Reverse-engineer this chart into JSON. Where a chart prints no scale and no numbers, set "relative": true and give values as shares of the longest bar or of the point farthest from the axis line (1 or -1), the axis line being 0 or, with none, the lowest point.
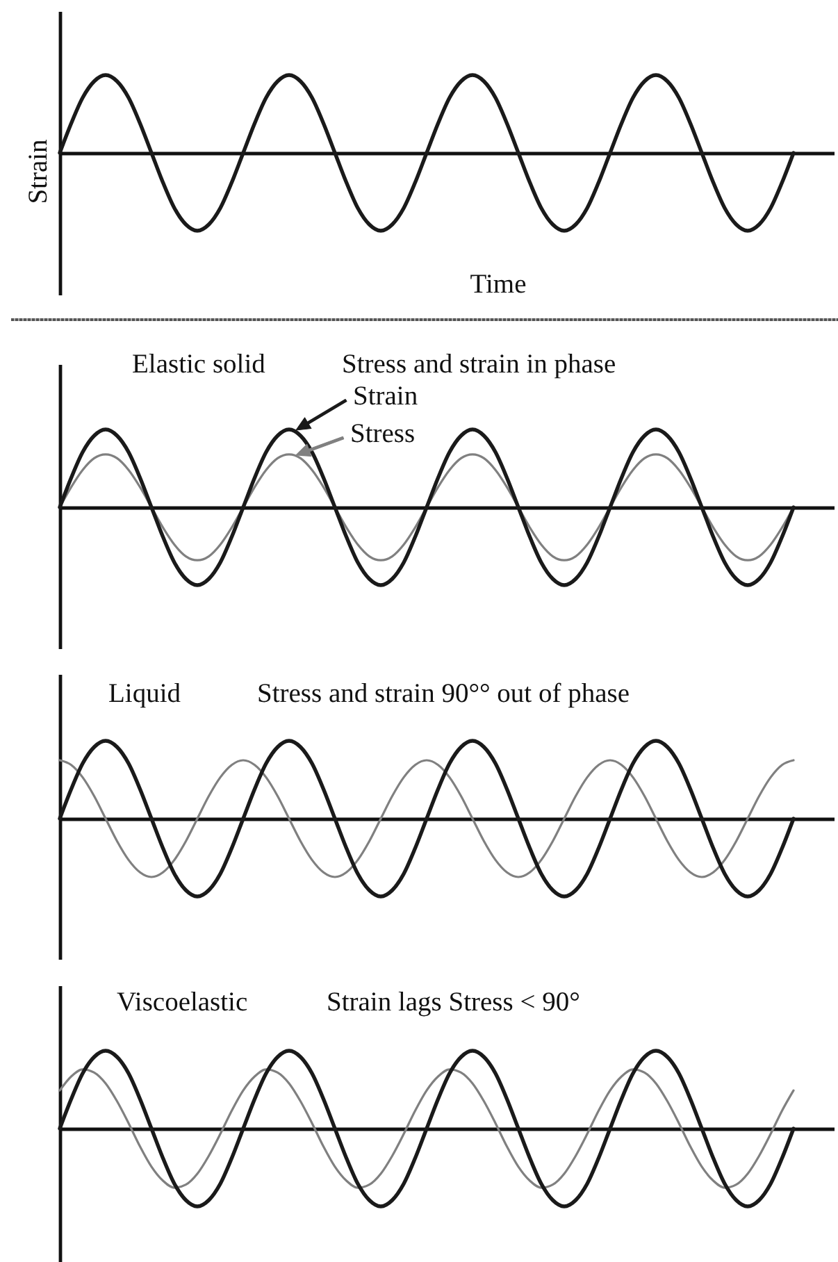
{
  "chart_data": [
    {
      "type": "line",
      "relative": true,
      "xlabel": "Time",
      "ylabel": "Strain",
      "categories": [
        null,
        null,
        null,
        null,
        null,
        null,
        null,
        null,
        null,
        null,
        null,
        null,
        null,
        null,
        null,
        null,
        null,
        null,
        null,
        null,
        null,
        null,
        null,
        null,
        null,
        null,
        null,
        null,
        null,
        null,
        null,
        null,
        null,
        null,
        null,
        null,
        null,
        null,
        null,
        null,
        null,
        null,
        null,
        null,
        null,
        null,
        null,
        null,
        null,
        null,
        null,
        null,
        null,
        null,
        null,
        null,
        null,
        null,
        null,
        null,
        null,
        null,
        null,
        null,
        null
      ],
      "series": [
        {
          "color": "#1a1a1a",
          "values": [
            0,
            0.38,
            0.71,
            0.92,
            1,
            0.92,
            0.71,
            0.38,
            0,
            -0.38,
            -0.71,
            -0.92,
            -1,
            -0.92,
            -0.71,
            -0.38,
            0,
            0.38,
            0.71,
            0.92,
            1,
            0.92,
            0.71,
            0.38,
            0,
            -0.38,
            -0.71,
            -0.92,
            -1,
            -0.92,
            -0.71,
            -0.38,
            0,
            0.38,
            0.71,
            0.92,
            1,
            0.92,
            0.71,
            0.38,
            0,
            -0.38,
            -0.71,
            -0.92,
            -1,
            -0.92,
            -0.71,
            -0.38,
            0,
            0.38,
            0.71,
            0.92,
            1,
            0.92,
            0.71,
            0.38,
            0,
            -0.38,
            -0.71,
            -0.92,
            -1,
            -0.92,
            -0.71,
            -0.38,
            0
          ]
        }
      ]
    },
    {
      "type": "line",
      "relative": true,
      "title": "Elastic solid",
      "subtitle": "Stress and strain in phase",
      "legend": "top",
      "categories": [
        null,
        null,
        null,
        null,
        null,
        null,
        null,
        null,
        null,
        null,
        null,
        null,
        null,
        null,
        null,
        null,
        null,
        null,
        null,
        null,
        null,
        null,
        null,
        null,
        null,
        null,
        null,
        null,
        null,
        null,
        null,
        null,
        null,
        null,
        null,
        null,
        null,
        null,
        null,
        null,
        null,
        null,
        null,
        null,
        null,
        null,
        null,
        null,
        null,
        null,
        null,
        null,
        null,
        null,
        null,
        null,
        null,
        null,
        null,
        null,
        null,
        null,
        null,
        null,
        null
      ],
      "series": [
        {
          "name": "Strain",
          "color": "#1a1a1a",
          "values": [
            0,
            0.38,
            0.71,
            0.92,
            1,
            0.92,
            0.71,
            0.38,
            0,
            -0.38,
            -0.71,
            -0.92,
            -1,
            -0.92,
            -0.71,
            -0.38,
            0,
            0.38,
            0.71,
            0.92,
            1,
            0.92,
            0.71,
            0.38,
            0,
            -0.38,
            -0.71,
            -0.92,
            -1,
            -0.92,
            -0.71,
            -0.38,
            0,
            0.38,
            0.71,
            0.92,
            1,
            0.92,
            0.71,
            0.38,
            0,
            -0.38,
            -0.71,
            -0.92,
            -1,
            -0.92,
            -0.71,
            -0.38,
            0,
            0.38,
            0.71,
            0.92,
            1,
            0.92,
            0.71,
            0.38,
            0,
            -0.38,
            -0.71,
            -0.92,
            -1,
            -0.92,
            -0.71,
            -0.38,
            0
          ]
        },
        {
          "name": "Stress",
          "color": "#808080",
          "values": [
            0,
            0.26,
            0.48,
            0.63,
            0.68,
            0.63,
            0.48,
            0.26,
            0,
            -0.26,
            -0.48,
            -0.63,
            -0.68,
            -0.63,
            -0.48,
            -0.26,
            0,
            0.26,
            0.48,
            0.63,
            0.68,
            0.63,
            0.48,
            0.26,
            0,
            -0.26,
            -0.48,
            -0.63,
            -0.68,
            -0.63,
            -0.48,
            -0.26,
            0,
            0.26,
            0.48,
            0.63,
            0.68,
            0.63,
            0.48,
            0.26,
            0,
            -0.26,
            -0.48,
            -0.63,
            -0.68,
            -0.63,
            -0.48,
            -0.26,
            0,
            0.26,
            0.48,
            0.63,
            0.68,
            0.63,
            0.48,
            0.26,
            0,
            -0.26,
            -0.48,
            -0.63,
            -0.68,
            -0.63,
            -0.48,
            -0.26,
            0
          ]
        }
      ]
    },
    {
      "type": "line",
      "relative": true,
      "title": "Liquid",
      "subtitle": "Stress and strain 90°° out of phase",
      "categories": [
        null,
        null,
        null,
        null,
        null,
        null,
        null,
        null,
        null,
        null,
        null,
        null,
        null,
        null,
        null,
        null,
        null,
        null,
        null,
        null,
        null,
        null,
        null,
        null,
        null,
        null,
        null,
        null,
        null,
        null,
        null,
        null,
        null,
        null,
        null,
        null,
        null,
        null,
        null,
        null,
        null,
        null,
        null,
        null,
        null,
        null,
        null,
        null,
        null,
        null,
        null,
        null,
        null,
        null,
        null,
        null,
        null,
        null,
        null,
        null,
        null,
        null,
        null,
        null,
        null
      ],
      "series": [
        {
          "color": "#1a1a1a",
          "values": [
            0,
            0.38,
            0.71,
            0.92,
            1,
            0.92,
            0.71,
            0.38,
            0,
            -0.38,
            -0.71,
            -0.92,
            -1,
            -0.92,
            -0.71,
            -0.38,
            0,
            0.38,
            0.71,
            0.92,
            1,
            0.92,
            0.71,
            0.38,
            0,
            -0.38,
            -0.71,
            -0.92,
            -1,
            -0.92,
            -0.71,
            -0.38,
            0,
            0.38,
            0.71,
            0.92,
            1,
            0.92,
            0.71,
            0.38,
            0,
            -0.38,
            -0.71,
            -0.92,
            -1,
            -0.92,
            -0.71,
            -0.38,
            0,
            0.38,
            0.71,
            0.92,
            1,
            0.92,
            0.71,
            0.38,
            0,
            -0.38,
            -0.71,
            -0.92,
            -1,
            -0.92,
            -0.71,
            -0.38,
            0
          ]
        },
        {
          "color": "#808080",
          "values": [
            0.75,
            0.69,
            0.53,
            0.29,
            0,
            -0.29,
            -0.53,
            -0.69,
            -0.75,
            -0.69,
            -0.53,
            -0.29,
            0,
            0.29,
            0.53,
            0.69,
            0.75,
            0.69,
            0.53,
            0.29,
            0,
            -0.29,
            -0.53,
            -0.69,
            -0.75,
            -0.69,
            -0.53,
            -0.29,
            0,
            0.29,
            0.53,
            0.69,
            0.75,
            0.69,
            0.53,
            0.29,
            0,
            -0.29,
            -0.53,
            -0.69,
            -0.75,
            -0.69,
            -0.53,
            -0.29,
            0,
            0.29,
            0.53,
            0.69,
            0.75,
            0.69,
            0.53,
            0.29,
            0,
            -0.29,
            -0.53,
            -0.69,
            -0.75,
            -0.69,
            -0.53,
            -0.29,
            0,
            0.29,
            0.53,
            0.69,
            0.75
          ]
        }
      ]
    },
    {
      "type": "line",
      "relative": true,
      "title": "Viscoelastic",
      "subtitle": "Strain lags Stress < 90°",
      "categories": [
        null,
        null,
        null,
        null,
        null,
        null,
        null,
        null,
        null,
        null,
        null,
        null,
        null,
        null,
        null,
        null,
        null,
        null,
        null,
        null,
        null,
        null,
        null,
        null,
        null,
        null,
        null,
        null,
        null,
        null,
        null,
        null,
        null,
        null,
        null,
        null,
        null,
        null,
        null,
        null,
        null,
        null,
        null,
        null,
        null,
        null,
        null,
        null,
        null,
        null,
        null,
        null,
        null,
        null,
        null,
        null,
        null,
        null,
        null,
        null,
        null,
        null,
        null,
        null,
        null
      ],
      "series": [
        {
          "color": "#1a1a1a",
          "values": [
            0,
            0.38,
            0.71,
            0.92,
            1,
            0.92,
            0.71,
            0.38,
            0,
            -0.38,
            -0.71,
            -0.92,
            -1,
            -0.92,
            -0.71,
            -0.38,
            0,
            0.38,
            0.71,
            0.92,
            1,
            0.92,
            0.71,
            0.38,
            0,
            -0.38,
            -0.71,
            -0.92,
            -1,
            -0.92,
            -0.71,
            -0.38,
            0,
            0.38,
            0.71,
            0.92,
            1,
            0.92,
            0.71,
            0.38,
            0,
            -0.38,
            -0.71,
            -0.92,
            -1,
            -0.92,
            -0.71,
            -0.38,
            0,
            0.38,
            0.71,
            0.92,
            1,
            0.92,
            0.71,
            0.38,
            0,
            -0.38,
            -0.71,
            -0.92,
            -1,
            -0.92,
            -0.71,
            -0.38,
            0
          ]
        },
        {
          "color": "#808080",
          "values": [
            0.49,
            0.67,
            0.76,
            0.72,
            0.58,
            0.35,
            0.07,
            -0.23,
            -0.49,
            -0.67,
            -0.76,
            -0.72,
            -0.58,
            -0.35,
            -0.07,
            0.23,
            0.49,
            0.67,
            0.76,
            0.72,
            0.58,
            0.35,
            0.07,
            -0.23,
            -0.49,
            -0.67,
            -0.76,
            -0.72,
            -0.58,
            -0.35,
            -0.07,
            0.23,
            0.49,
            0.67,
            0.76,
            0.72,
            0.58,
            0.35,
            0.07,
            -0.23,
            -0.49,
            -0.67,
            -0.76,
            -0.72,
            -0.58,
            -0.35,
            -0.07,
            0.23,
            0.49,
            0.67,
            0.76,
            0.72,
            0.58,
            0.35,
            0.07,
            -0.23,
            -0.49,
            -0.67,
            -0.76,
            -0.72,
            -0.58,
            -0.35,
            -0.07,
            0.23,
            0.49
          ]
        }
      ]
    }
  ]
}
